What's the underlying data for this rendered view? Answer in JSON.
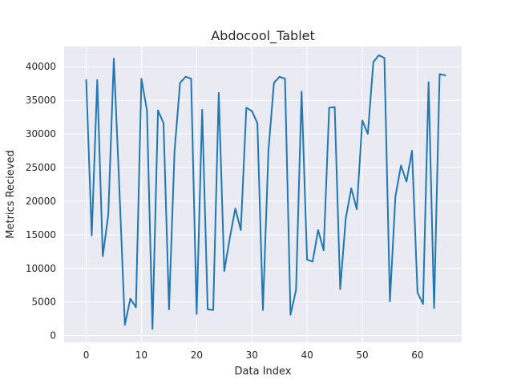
{
  "chart_data": {
    "type": "line",
    "title": "Abdocool_Tablet",
    "xlabel": "Data Index",
    "ylabel": "Metrics Recieved",
    "xlim": [
      -4,
      68
    ],
    "ylim": [
      -1000,
      43000
    ],
    "xticks": [
      0,
      10,
      20,
      30,
      40,
      50,
      60
    ],
    "yticks": [
      0,
      5000,
      10000,
      15000,
      20000,
      25000,
      30000,
      35000,
      40000
    ],
    "grid": true,
    "legend": "none",
    "colors": {
      "background": "#eaeaf2",
      "grid": "#ffffff",
      "line": "#1f77b4",
      "text": "#262626"
    },
    "series": [
      {
        "x": [
          0,
          1,
          2,
          3,
          4,
          5,
          6,
          7,
          8,
          9,
          10,
          11,
          12,
          13,
          14,
          15,
          16,
          17,
          18,
          19,
          20,
          21,
          22,
          23,
          24,
          25,
          26,
          27,
          28,
          29,
          30,
          31,
          32,
          33,
          34,
          35,
          36,
          37,
          38,
          39,
          40,
          41,
          42,
          43,
          44,
          45,
          46,
          47,
          48,
          49,
          50,
          51,
          52,
          53,
          54,
          55,
          56,
          57,
          58,
          59,
          60,
          61,
          62,
          63,
          64,
          65
        ],
        "values": [
          38000,
          14900,
          38000,
          11800,
          18000,
          41200,
          22000,
          1600,
          5500,
          4200,
          38200,
          33500,
          1000,
          33500,
          31600,
          3900,
          27500,
          37600,
          38500,
          38200,
          3200,
          33600,
          3900,
          3800,
          36100,
          9600,
          14500,
          18900,
          15700,
          33900,
          33400,
          31600,
          3800,
          27500,
          37600,
          38500,
          38200,
          3100,
          6800,
          36300,
          11300,
          11000,
          15700,
          12700,
          33900,
          34000,
          6900,
          17400,
          21900,
          18800,
          32000,
          30000,
          40700,
          41700,
          41300,
          5100,
          20700,
          25300,
          22900,
          27500,
          6400,
          4700,
          37700,
          4100,
          38900,
          38700
        ]
      }
    ]
  }
}
